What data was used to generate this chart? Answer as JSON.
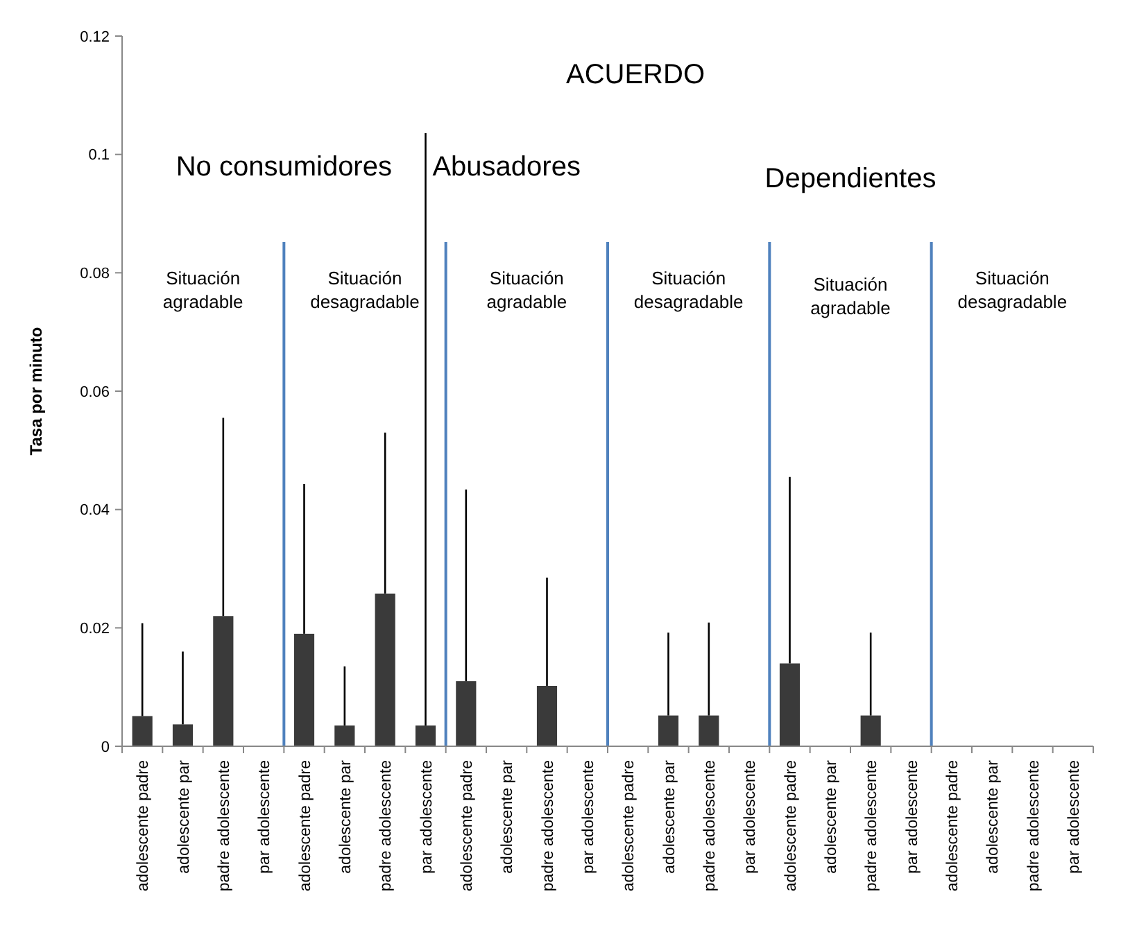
{
  "chart_data": {
    "type": "bar",
    "title": "ACUERDO",
    "ylabel": "Tasa por minuto",
    "categories": [
      "adolescente padre",
      "adolescente par",
      "padre adolescente",
      "par adolescente",
      "adolescente padre",
      "adolescente par",
      "padre adolescente",
      "par adolescente",
      "adolescente padre",
      "adolescente par",
      "padre adolescente",
      "par adolescente",
      "adolescente padre",
      "adolescente par",
      "padre adolescente",
      "par adolescente",
      "adolescente padre",
      "adolescente par",
      "padre adolescente",
      "par adolescente",
      "adolescente padre",
      "adolescente par",
      "padre adolescente",
      "par adolescente"
    ],
    "values": [
      0.0051,
      0.0037,
      0.022,
      0,
      0.019,
      0.0035,
      0.0258,
      0.0035,
      0.011,
      0,
      0.0102,
      0,
      0,
      0.0052,
      0.0052,
      0,
      0.014,
      0,
      0.0052,
      0,
      0,
      0,
      0,
      0
    ],
    "errors": [
      [
        0.0051,
        0.0208
      ],
      [
        0.0037,
        0.016
      ],
      [
        0.022,
        0.0555
      ],
      null,
      [
        0.019,
        0.0443
      ],
      [
        0.0035,
        0.0135
      ],
      [
        0.0258,
        0.053
      ],
      [
        0.0035,
        0.1036
      ],
      [
        0.011,
        0.0434
      ],
      null,
      [
        0.0102,
        0.0285
      ],
      null,
      null,
      [
        0.0052,
        0.0192
      ],
      [
        0.0052,
        0.0209
      ],
      null,
      [
        0.014,
        0.0455
      ],
      null,
      [
        0.0052,
        0.0192
      ],
      null,
      null,
      null,
      null,
      null
    ],
    "color": "#3a3a3a",
    "ylim": [
      0,
      0.12
    ],
    "yticks": [
      0,
      0.02,
      0.04,
      0.06,
      0.08,
      0.1,
      0.12
    ],
    "annotations": [
      "No consumidores",
      "Situación agradable",
      "Situación desagradable",
      "Abusadores",
      "Situación agradable",
      "Situación desagradable",
      "Dependientes",
      "Situación agradable",
      "Situación desagradable"
    ]
  }
}
